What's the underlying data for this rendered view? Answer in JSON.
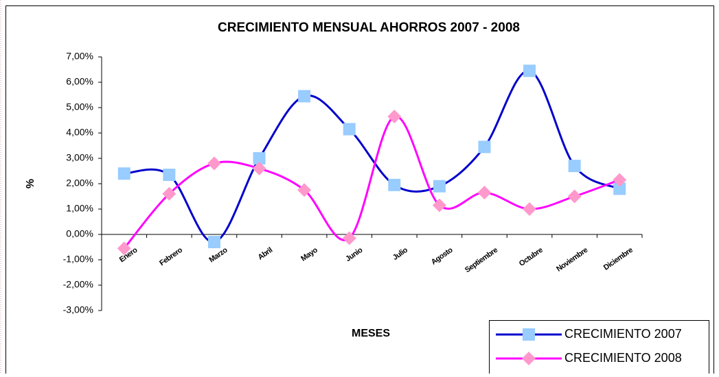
{
  "chart_data": {
    "type": "line",
    "title": "CRECIMIENTO MENSUAL AHORROS 2007 - 2008",
    "xlabel": "MESES",
    "ylabel": "%",
    "categories": [
      "Enero",
      "Febrero",
      "Marzo",
      "Abril",
      "Mayo",
      "Junio",
      "Julio",
      "Agosto",
      "Septiembre",
      "Octubre",
      "Noviembre",
      "Diciembre"
    ],
    "series": [
      {
        "name": "CRECIMIENTO 2007",
        "color": "#0000cc",
        "marker_color": "#99ccff",
        "marker": "square",
        "values": [
          2.4,
          2.35,
          -0.3,
          3.0,
          5.45,
          4.15,
          1.95,
          1.9,
          3.45,
          6.45,
          2.7,
          1.8
        ]
      },
      {
        "name": "CRECIMIENTO 2008",
        "color": "#ff00ff",
        "marker_color": "#ff99cc",
        "marker": "diamond",
        "values": [
          -0.55,
          1.6,
          2.8,
          2.6,
          1.75,
          -0.15,
          4.65,
          1.15,
          1.65,
          1.0,
          1.5,
          2.15
        ]
      }
    ],
    "ylim": [
      -3,
      7
    ],
    "yticks": [
      {
        "value": -3,
        "label": "-3,00%"
      },
      {
        "value": -2,
        "label": "-2,00%"
      },
      {
        "value": -1,
        "label": "-1,00%"
      },
      {
        "value": 0,
        "label": "0,00%"
      },
      {
        "value": 1,
        "label": "1,00%"
      },
      {
        "value": 2,
        "label": "2,00%"
      },
      {
        "value": 3,
        "label": "3,00%"
      },
      {
        "value": 4,
        "label": "4,00%"
      },
      {
        "value": 5,
        "label": "5,00%"
      },
      {
        "value": 6,
        "label": "6,00%"
      },
      {
        "value": 7,
        "label": "7,00%"
      }
    ],
    "smooth": true,
    "grid": false,
    "legend": "lower right"
  }
}
